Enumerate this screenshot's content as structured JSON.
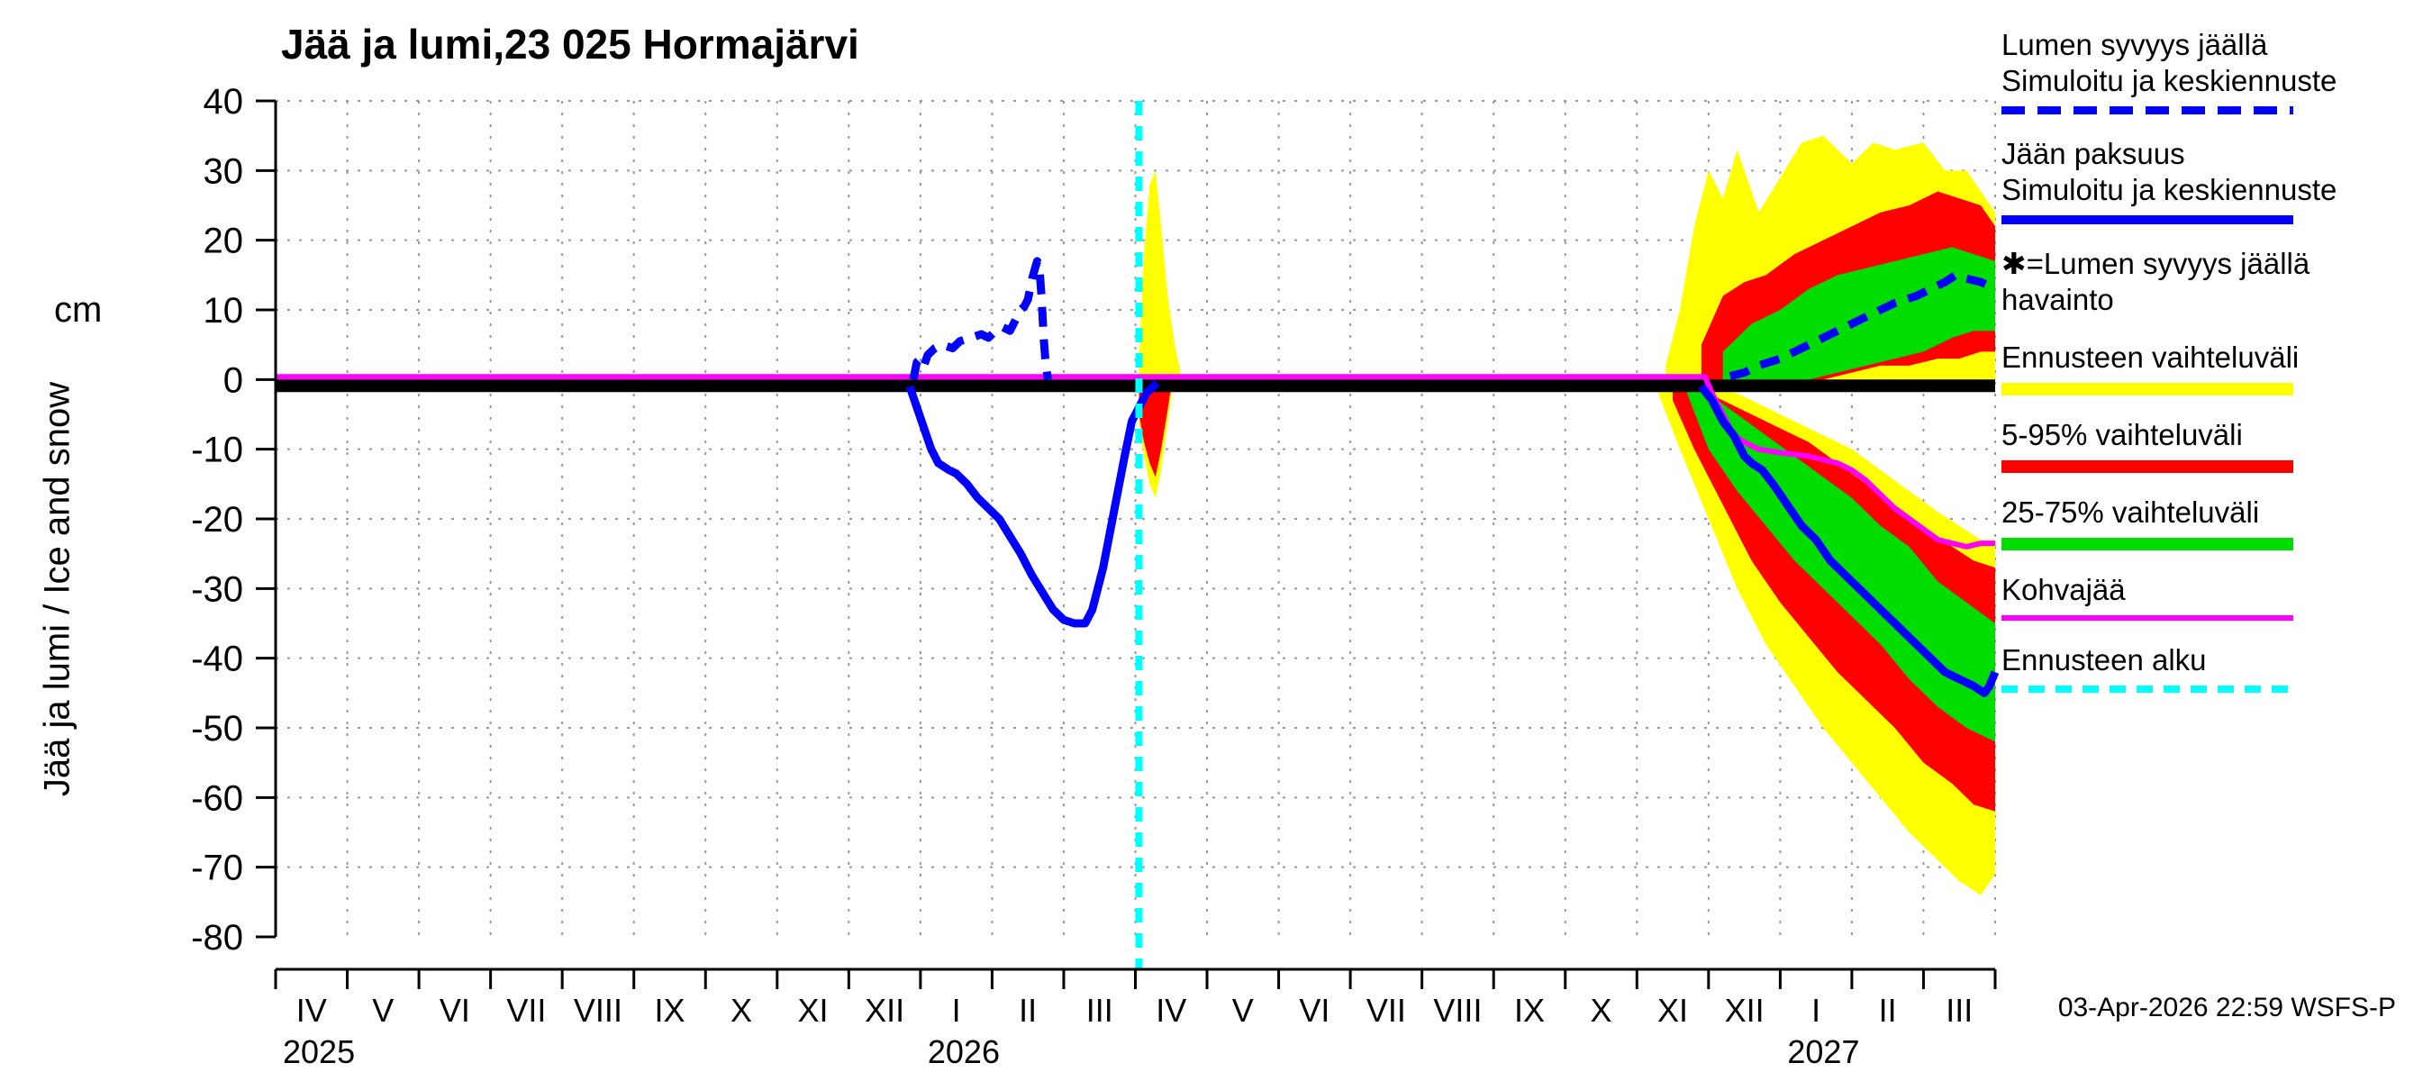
{
  "title": "Jää ja lumi,23 025 Hormajärvi",
  "y_axis": {
    "unit_label": "cm",
    "axis_label": "Jää ja lumi / Ice and snow",
    "ticks": [
      40,
      30,
      20,
      10,
      0,
      -10,
      -20,
      -30,
      -40,
      -50,
      -60,
      -70,
      -80
    ]
  },
  "x_axis": {
    "month_labels": [
      "IV",
      "V",
      "VI",
      "VII",
      "VIII",
      "IX",
      "X",
      "XI",
      "XII",
      "I",
      "II",
      "III",
      "IV",
      "V",
      "VI",
      "VII",
      "VIII",
      "IX",
      "X",
      "XI",
      "XII",
      "I",
      "II",
      "III"
    ],
    "year_labels": [
      {
        "text": "2025",
        "month_index": 0
      },
      {
        "text": "2026",
        "month_index": 9
      },
      {
        "text": "2027",
        "month_index": 21
      }
    ]
  },
  "footer": {
    "timestamp": "03-Apr-2026 22:59 WSFS-P"
  },
  "legend": {
    "entries": [
      {
        "lines": [
          "Lumen syvyys jäällä",
          "Simuloitu ja keskiennuste"
        ],
        "sample": {
          "color": "#0000ff",
          "style": "dashed",
          "thickness": 9,
          "dash": 26,
          "gap": 14
        }
      },
      {
        "lines": [
          "Jään paksuus",
          "Simuloitu ja keskiennuste"
        ],
        "sample": {
          "color": "#0000ff",
          "style": "solid",
          "thickness": 10
        }
      },
      {
        "lines": [
          "✱=Lumen syvyys jäällä",
          "havainto"
        ],
        "sample": null
      },
      {
        "lines": [
          "Ennusteen vaihteluväli"
        ],
        "sample": {
          "color": "#ffff00",
          "style": "solid",
          "thickness": 14
        }
      },
      {
        "lines": [
          "5-95% vaihteluväli"
        ],
        "sample": {
          "color": "#ff0000",
          "style": "solid",
          "thickness": 14
        }
      },
      {
        "lines": [
          "25-75% vaihteluväli"
        ],
        "sample": {
          "color": "#00dd00",
          "style": "solid",
          "thickness": 14
        }
      },
      {
        "lines": [
          "Kohvajää"
        ],
        "sample": {
          "color": "#ff00ff",
          "style": "solid",
          "thickness": 6
        }
      },
      {
        "lines": [
          "Ennusteen alku"
        ],
        "sample": {
          "color": "#00ffff",
          "style": "dashed",
          "thickness": 8,
          "dash": 18,
          "gap": 12
        }
      }
    ]
  },
  "chart_data": {
    "type": "line",
    "title": "Jää ja lumi,23 025 Hormajärvi",
    "ylabel": "Jää ja lumi / Ice and snow (cm)",
    "ylim": [
      -80,
      40
    ],
    "xlim_months": [
      0,
      24
    ],
    "x_unit": "months since 2025-04-01 (ticks are month boundaries IV 2025 ... III 2027)",
    "grid": {
      "h_levels": [
        40,
        30,
        20,
        10,
        -10,
        -20,
        -30,
        -40,
        -50,
        -60,
        -70
      ],
      "v_every_month": true
    },
    "forecast_start_t": 12.05,
    "forecast_start_label": "Ennusteen alku (03-Apr-2026)",
    "series": {
      "snow_obs_band": {
        "label": "Lumen syvyys jäällä havainto",
        "color": "#000000",
        "width": 14,
        "points": [
          [
            0,
            -0.9
          ],
          [
            24,
            -0.9
          ]
        ]
      },
      "kohvajaa": {
        "label": "Kohvajää",
        "color": "#ff00ff",
        "width": 6,
        "points": [
          [
            0,
            0.4
          ],
          [
            19.95,
            0.4
          ],
          [
            20.05,
            -2
          ],
          [
            20.15,
            -4
          ],
          [
            20.25,
            -6
          ],
          [
            20.35,
            -8
          ],
          [
            20.5,
            -9
          ],
          [
            20.7,
            -10
          ],
          [
            21.0,
            -10.5
          ],
          [
            21.4,
            -11
          ],
          [
            21.8,
            -12
          ],
          [
            22.0,
            -13
          ],
          [
            22.2,
            -14.5
          ],
          [
            22.4,
            -16.5
          ],
          [
            22.6,
            -18.5
          ],
          [
            22.8,
            -20
          ],
          [
            23.0,
            -21.5
          ],
          [
            23.2,
            -23
          ],
          [
            23.4,
            -23.5
          ],
          [
            23.6,
            -24
          ],
          [
            23.8,
            -23.5
          ],
          [
            24,
            -23.5
          ]
        ]
      },
      "ice_thickness_sim": {
        "label": "Jään paksuus, simuloitu ja keskiennuste",
        "color": "#0000ff",
        "width": 9,
        "style": "solid",
        "segments": [
          [
            [
              8.85,
              -1
            ],
            [
              8.95,
              -4
            ],
            [
              9.05,
              -7
            ],
            [
              9.15,
              -10
            ],
            [
              9.25,
              -12
            ],
            [
              9.4,
              -13
            ],
            [
              9.5,
              -13.5
            ],
            [
              9.65,
              -15
            ],
            [
              9.8,
              -17
            ],
            [
              9.95,
              -18.5
            ],
            [
              10.1,
              -20
            ],
            [
              10.25,
              -22.5
            ],
            [
              10.4,
              -25
            ],
            [
              10.55,
              -28
            ],
            [
              10.7,
              -30.5
            ],
            [
              10.85,
              -33
            ],
            [
              11.0,
              -34.5
            ],
            [
              11.15,
              -35
            ],
            [
              11.3,
              -35
            ],
            [
              11.4,
              -33
            ],
            [
              11.55,
              -27
            ],
            [
              11.7,
              -19
            ],
            [
              11.85,
              -11
            ],
            [
              11.95,
              -6
            ],
            [
              12.05,
              -4
            ],
            [
              12.15,
              -2
            ],
            [
              12.3,
              -0.5
            ]
          ],
          [
            [
              19.9,
              -1
            ],
            [
              20.05,
              -3
            ],
            [
              20.2,
              -6
            ],
            [
              20.35,
              -8
            ],
            [
              20.5,
              -11
            ],
            [
              20.6,
              -12
            ],
            [
              20.75,
              -13
            ],
            [
              20.9,
              -15
            ],
            [
              21.1,
              -18
            ],
            [
              21.3,
              -21
            ],
            [
              21.5,
              -23
            ],
            [
              21.7,
              -26
            ],
            [
              21.9,
              -28
            ],
            [
              22.1,
              -30
            ],
            [
              22.3,
              -32
            ],
            [
              22.5,
              -34
            ],
            [
              22.7,
              -36
            ],
            [
              22.9,
              -38
            ],
            [
              23.1,
              -40
            ],
            [
              23.3,
              -42
            ],
            [
              23.5,
              -43
            ],
            [
              23.7,
              -44
            ],
            [
              23.85,
              -45
            ],
            [
              23.92,
              -44
            ],
            [
              24,
              -42
            ]
          ]
        ]
      },
      "snow_depth_sim": {
        "label": "Lumen syvyys jäällä, simuloitu ja keskiennuste",
        "color": "#0000ff",
        "width": 9,
        "style": "dashed",
        "segments": [
          [
            [
              8.9,
              0
            ],
            [
              8.95,
              2.5
            ],
            [
              9.0,
              3
            ],
            [
              9.05,
              2
            ],
            [
              9.1,
              3.5
            ],
            [
              9.2,
              4.5
            ],
            [
              9.3,
              5
            ],
            [
              9.45,
              4.5
            ],
            [
              9.55,
              5.5
            ],
            [
              9.7,
              6
            ],
            [
              9.85,
              6.5
            ],
            [
              9.95,
              6
            ],
            [
              10.05,
              7
            ],
            [
              10.15,
              7.5
            ],
            [
              10.25,
              7
            ],
            [
              10.3,
              8
            ],
            [
              10.35,
              9
            ],
            [
              10.4,
              10
            ],
            [
              10.45,
              10.5
            ],
            [
              10.5,
              11.5
            ],
            [
              10.53,
              13
            ],
            [
              10.56,
              14.5
            ],
            [
              10.6,
              16
            ],
            [
              10.63,
              17
            ],
            [
              10.66,
              16
            ],
            [
              10.69,
              12
            ],
            [
              10.72,
              6
            ],
            [
              10.75,
              2
            ],
            [
              10.78,
              0
            ]
          ],
          [
            [
              20.3,
              0.5
            ],
            [
              20.5,
              1
            ],
            [
              20.7,
              2
            ],
            [
              21.0,
              3
            ],
            [
              21.2,
              4
            ],
            [
              21.5,
              5.5
            ],
            [
              21.8,
              7
            ],
            [
              22.0,
              8
            ],
            [
              22.2,
              9
            ],
            [
              22.4,
              10
            ],
            [
              22.6,
              11
            ],
            [
              22.9,
              12
            ],
            [
              23.1,
              13
            ],
            [
              23.3,
              14
            ],
            [
              23.45,
              15
            ],
            [
              23.6,
              14.5
            ],
            [
              23.8,
              14
            ],
            [
              24,
              13
            ]
          ]
        ]
      }
    },
    "bands": [
      {
        "name": "breakup-2026-range-above",
        "label": "Ennusteen vaihteluväli",
        "color": "#ffff00",
        "x": [
          12.05,
          12.12,
          12.2,
          12.28,
          12.36,
          12.45,
          12.55,
          12.65
        ],
        "upper": [
          3,
          18,
          28,
          30,
          22,
          12,
          5,
          0
        ],
        "lower": [
          0,
          0,
          0,
          0,
          0,
          0,
          0,
          0
        ]
      },
      {
        "name": "breakup-2026-range-below",
        "label": "Ennusteen vaihteluväli",
        "color": "#ffff00",
        "x": [
          12.05,
          12.12,
          12.2,
          12.28,
          12.36,
          12.44,
          12.52
        ],
        "upper": [
          0,
          0,
          0,
          0,
          0,
          0,
          0
        ],
        "lower": [
          -6,
          -11,
          -15,
          -17,
          -13,
          -7,
          -1
        ]
      },
      {
        "name": "breakup-2026-5-95-below",
        "label": "5-95% vaihteluväli",
        "color": "#ff0000",
        "x": [
          12.05,
          12.12,
          12.2,
          12.28,
          12.36,
          12.44,
          12.5
        ],
        "upper": [
          0,
          0,
          0,
          0,
          0,
          0,
          0
        ],
        "lower": [
          -5,
          -9,
          -12,
          -14,
          -10,
          -5,
          -1
        ]
      },
      {
        "name": "ice-2027-range",
        "label": "Ennusteen vaihteluväli (jään paksuus)",
        "color": "#ffff00",
        "x": [
          19.3,
          19.6,
          20.0,
          20.4,
          20.8,
          21.2,
          21.6,
          22.0,
          22.4,
          22.8,
          23.2,
          23.5,
          23.8,
          24.0
        ],
        "upper": [
          0,
          0,
          -1,
          -2,
          -4,
          -6,
          -8,
          -10,
          -13,
          -16,
          -19,
          -21,
          -23,
          -23
        ],
        "lower": [
          -2,
          -10,
          -20,
          -30,
          -38,
          -44,
          -50,
          -55,
          -60,
          -65,
          -69,
          -72,
          -74,
          -71
        ]
      },
      {
        "name": "ice-2027-5-95",
        "label": "5-95% vaihteluväli (jään paksuus)",
        "color": "#ff0000",
        "x": [
          19.5,
          19.8,
          20.2,
          20.6,
          21.0,
          21.4,
          21.8,
          22.2,
          22.6,
          23.0,
          23.4,
          23.7,
          24.0
        ],
        "upper": [
          0,
          -1,
          -3,
          -5,
          -7,
          -9,
          -12,
          -15,
          -18,
          -21,
          -24,
          -26,
          -27
        ],
        "lower": [
          -3,
          -10,
          -18,
          -26,
          -32,
          -37,
          -42,
          -46,
          -50,
          -55,
          -58,
          -61,
          -62
        ]
      },
      {
        "name": "ice-2027-25-75",
        "label": "25-75% vaihteluväli (jään paksuus)",
        "color": "#00dd00",
        "x": [
          19.7,
          20.0,
          20.4,
          20.8,
          21.2,
          21.6,
          22.0,
          22.4,
          22.8,
          23.2,
          23.6,
          24.0
        ],
        "upper": [
          0,
          -2,
          -5,
          -8,
          -11,
          -14,
          -17,
          -21,
          -24,
          -29,
          -32,
          -35
        ],
        "lower": [
          -2,
          -10,
          -16,
          -21,
          -26,
          -30,
          -34,
          -38,
          -43,
          -47,
          -50,
          -52
        ]
      },
      {
        "name": "snow-2027-range",
        "label": "Ennusteen vaihteluväli (lumen syvyys)",
        "color": "#ffff00",
        "x": [
          19.4,
          19.6,
          19.8,
          20.0,
          20.2,
          20.4,
          20.7,
          21.0,
          21.3,
          21.6,
          22.0,
          22.3,
          22.6,
          23.0,
          23.3,
          23.6,
          23.8,
          24.0
        ],
        "upper": [
          2,
          10,
          22,
          30,
          26,
          33,
          24,
          29,
          34,
          35,
          31,
          34,
          33,
          34,
          30,
          30,
          27,
          24
        ],
        "lower": [
          0,
          0,
          0,
          0,
          0,
          0,
          0,
          0,
          0,
          0,
          0,
          0,
          0,
          0,
          0,
          0,
          0,
          0
        ]
      },
      {
        "name": "snow-2027-5-95",
        "label": "5-95% vaihteluväli (lumen syvyys)",
        "color": "#ff0000",
        "x": [
          19.9,
          20.2,
          20.5,
          20.8,
          21.2,
          21.6,
          22.0,
          22.4,
          22.8,
          23.2,
          23.5,
          23.8,
          24.0
        ],
        "upper": [
          5,
          12,
          14,
          15,
          18,
          20,
          22,
          24,
          25,
          27,
          26,
          25,
          22
        ],
        "lower": [
          0,
          0,
          0,
          0,
          0,
          0,
          1,
          2,
          2,
          3,
          3,
          4,
          4
        ]
      },
      {
        "name": "snow-2027-25-75",
        "label": "25-75% vaihteluväli (lumen syvyys)",
        "color": "#00dd00",
        "x": [
          20.2,
          20.6,
          21.0,
          21.4,
          21.8,
          22.2,
          22.6,
          23.0,
          23.4,
          23.7,
          24.0
        ],
        "upper": [
          4,
          8,
          10,
          13,
          15,
          16,
          17,
          18,
          19,
          18,
          17
        ],
        "lower": [
          0,
          0,
          0,
          0,
          1,
          2,
          3,
          4,
          6,
          7,
          7
        ]
      }
    ]
  }
}
